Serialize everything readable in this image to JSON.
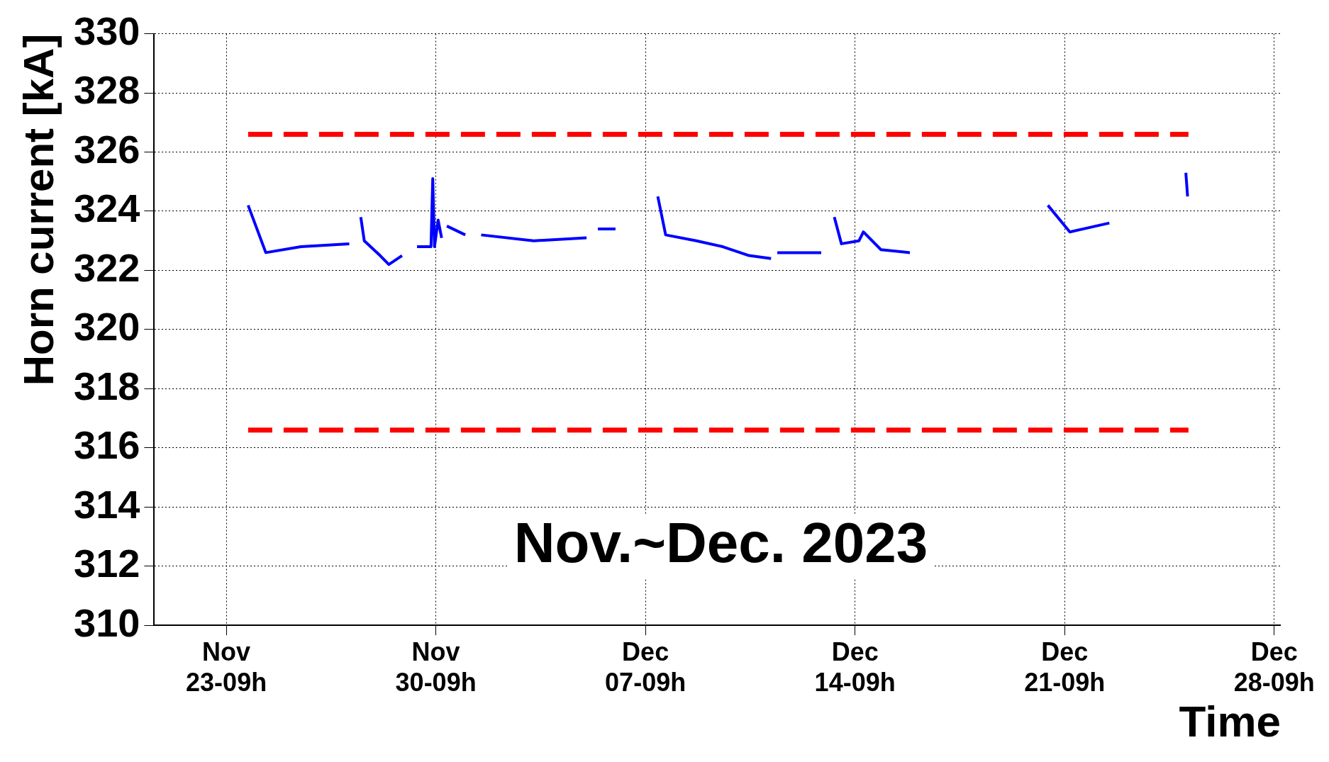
{
  "chart_data": {
    "type": "line",
    "xlabel": "Time",
    "ylabel": "Horn current [kA]",
    "annotations": [
      "Nov.~Dec. 2023"
    ],
    "xlim": [
      "2023-11-20T23:12",
      "2023-12-28T14:18"
    ],
    "xticks": [
      {
        "value": "2023-11-23T09:00",
        "label": "Nov\n23-09h"
      },
      {
        "value": "2023-11-30T09:00",
        "label": "Nov\n30-09h"
      },
      {
        "value": "2023-12-07T09:00",
        "label": "Dec\n07-09h"
      },
      {
        "value": "2023-12-14T09:00",
        "label": "Dec\n14-09h"
      },
      {
        "value": "2023-12-21T09:00",
        "label": "Dec\n21-09h"
      },
      {
        "value": "2023-12-28T09:00",
        "label": "Dec\n28-09h"
      }
    ],
    "ylim": [
      310,
      330
    ],
    "yticks": [
      310,
      312,
      314,
      316,
      318,
      320,
      322,
      324,
      326,
      328,
      330
    ],
    "grid": true,
    "legend": false,
    "marker": "none",
    "series": [
      {
        "color": "#0000ff",
        "line_style": "solid",
        "x": [
          "2023-11-24T02:30",
          "2023-11-24T16:40",
          "2023-11-25T20:50",
          "2023-11-27T11:35",
          "2023-11-27T16:00",
          "2023-11-27T20:48",
          "2023-11-27T23:36",
          "2023-11-28T12:18",
          "2023-11-28T19:18",
          "2023-11-29T05:54",
          "2023-11-29T12:00",
          "2023-11-29T17:54",
          "2023-11-30T05:06",
          "2023-11-30T06:30",
          "2023-11-30T07:54",
          "2023-11-30T10:48",
          "2023-11-30T13:36",
          "2023-11-30T15:30",
          "2023-11-30T17:48",
          "2023-12-01T08:36",
          "2023-12-01T15:00",
          "2023-12-01T21:18",
          "2023-12-03T15:30",
          "2023-12-05T09:48",
          "2023-12-05T14:00",
          "2023-12-05T18:54",
          "2023-12-06T09:00",
          "2023-12-07T02:00",
          "2023-12-07T18:54",
          "2023-12-08T01:12",
          "2023-12-09T01:54",
          "2023-12-09T23:00",
          "2023-12-10T20:06",
          "2023-12-11T13:42",
          "2023-12-11T16:00",
          "2023-12-11T18:42",
          "2023-12-13T05:54",
          "2023-12-13T11:00",
          "2023-12-13T16:24",
          "2023-12-13T22:06",
          "2023-12-14T12:12",
          "2023-12-14T15:42",
          "2023-12-15T05:48",
          "2023-12-16T05:00",
          "2023-12-18T12:00",
          "2023-12-20T19:36",
          "2023-12-21T13:12",
          "2023-12-22T20:54",
          "2023-12-24T03:00",
          "2023-12-25T10:12",
          "2023-12-25T11:36"
        ],
        "values": [
          324.2,
          322.6,
          322.8,
          322.9,
          null,
          323.8,
          323.0,
          322.5,
          322.2,
          322.5,
          null,
          322.8,
          322.8,
          325.1,
          322.8,
          323.7,
          323.1,
          null,
          323.5,
          323.2,
          null,
          323.2,
          323.0,
          323.1,
          null,
          323.4,
          323.4,
          null,
          324.5,
          323.2,
          323.0,
          322.8,
          322.5,
          322.4,
          null,
          322.6,
          322.6,
          null,
          323.8,
          322.9,
          323.0,
          323.3,
          322.7,
          322.6,
          null,
          324.2,
          323.3,
          323.6,
          null,
          325.3,
          324.5
        ]
      },
      {
        "color": "#ff0000",
        "line_style": "dashed",
        "x": [
          "2023-11-24T02:30",
          "2023-12-25T12:18"
        ],
        "values": [
          326.6,
          326.6
        ]
      },
      {
        "color": "#ff0000",
        "line_style": "dashed",
        "x": [
          "2023-11-24T02:30",
          "2023-12-25T12:18"
        ],
        "values": [
          316.6,
          316.6
        ]
      }
    ]
  }
}
